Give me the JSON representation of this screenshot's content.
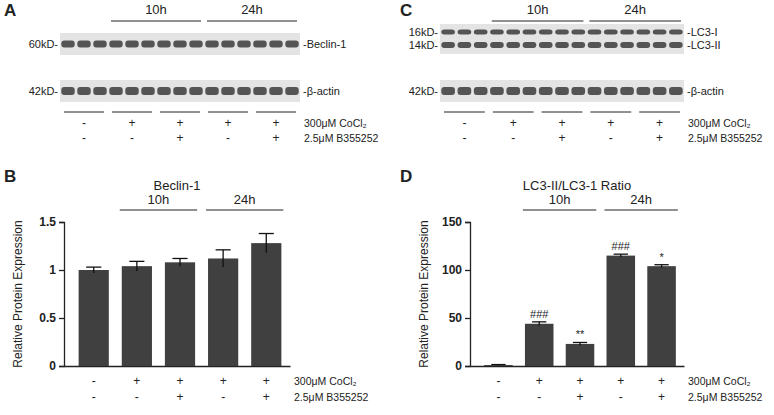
{
  "blots": [
    {
      "panel": "A",
      "groups": [
        {
          "label": "10h",
          "categories": [
            1,
            2
          ]
        },
        {
          "label": "24h",
          "categories": [
            3,
            4
          ]
        }
      ],
      "rows": [
        {
          "ladder": [
            "60kD-"
          ],
          "bands": [
            "-Beclin-1"
          ]
        },
        {
          "ladder": [
            "42kD-"
          ],
          "bands": [
            "-β-actin"
          ]
        }
      ],
      "conditions": [
        {
          "label": "300μM CoCl₂",
          "signs": [
            "-",
            "+",
            "+",
            "+",
            "+"
          ]
        },
        {
          "label": "2.5μM B355252",
          "signs": [
            "-",
            "-",
            "+",
            "-",
            "+"
          ]
        }
      ]
    },
    {
      "panel": "C",
      "groups": [
        {
          "label": "10h",
          "categories": [
            1,
            2
          ]
        },
        {
          "label": "24h",
          "categories": [
            3,
            4
          ]
        }
      ],
      "rows": [
        {
          "ladder": [
            "16kD-",
            "14kD-"
          ],
          "bands": [
            "-LC3-I",
            "-LC3-II"
          ]
        },
        {
          "ladder": [
            "42kD-"
          ],
          "bands": [
            "-β-actin"
          ]
        }
      ],
      "conditions": [
        {
          "label": "300μM CoCl₂",
          "signs": [
            "-",
            "+",
            "+",
            "+",
            "+"
          ]
        },
        {
          "label": "2.5μM B355252",
          "signs": [
            "-",
            "-",
            "+",
            "-",
            "+"
          ]
        }
      ]
    }
  ],
  "chart_data": [
    {
      "type": "bar",
      "panel": "B",
      "title": "Beclin-1",
      "y_label": "Relative Protein Expression",
      "categories": [
        null,
        null,
        null,
        null,
        null
      ],
      "values": [
        1.0,
        1.04,
        1.08,
        1.12,
        1.28
      ],
      "errors": [
        0.03,
        0.05,
        0.04,
        0.09,
        0.1
      ],
      "color": "#404040",
      "ylim": [
        0,
        1.5
      ],
      "yticks": [
        0,
        0.5,
        1,
        1.5
      ],
      "groups": [
        {
          "label": "10h",
          "categories": [
            1,
            2
          ]
        },
        {
          "label": "24h",
          "categories": [
            3,
            4
          ]
        }
      ],
      "conditions": [
        {
          "label": "300μM CoCl₂",
          "signs": [
            "-",
            "+",
            "+",
            "+",
            "+"
          ]
        },
        {
          "label": "2.5μM B355252",
          "signs": [
            "-",
            "-",
            "+",
            "-",
            "+"
          ]
        }
      ]
    },
    {
      "type": "bar",
      "panel": "D",
      "title": "LC3-II/LC3-1 Ratio",
      "y_label": "Relative Protein Expression",
      "categories": [
        null,
        null,
        null,
        null,
        null
      ],
      "values": [
        1,
        44,
        23,
        115,
        104
      ],
      "errors": [
        0.5,
        2,
        1.5,
        1.5,
        1.5
      ],
      "significance": [
        null,
        "###",
        "**",
        "###",
        "*"
      ],
      "color": "#404040",
      "ylim": [
        0,
        150
      ],
      "yticks": [
        0,
        50,
        100,
        150
      ],
      "groups": [
        {
          "label": "10h",
          "categories": [
            1,
            2
          ]
        },
        {
          "label": "24h",
          "categories": [
            3,
            4
          ]
        }
      ],
      "conditions": [
        {
          "label": "300μM CoCl₂",
          "signs": [
            "-",
            "+",
            "+",
            "+",
            "+"
          ]
        },
        {
          "label": "2.5μM B355252",
          "signs": [
            "-",
            "-",
            "+",
            "-",
            "+"
          ]
        }
      ]
    }
  ]
}
